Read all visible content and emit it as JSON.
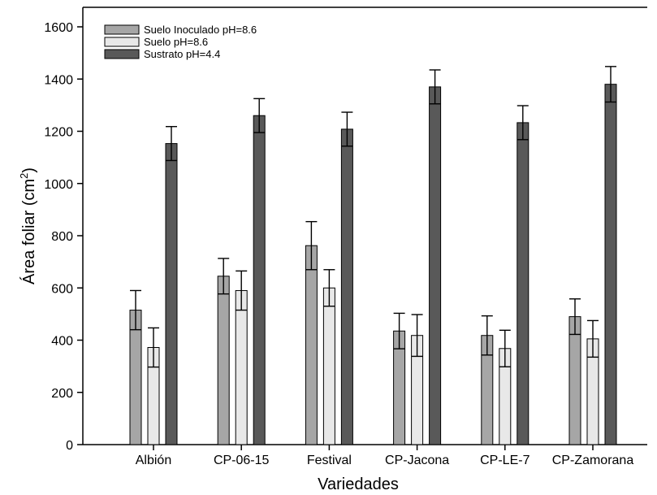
{
  "chart_data": {
    "type": "bar",
    "xlabel": "Variedades",
    "ylabel": "Área foliar (cm",
    "ylabel_superscript": "2",
    "ylabel_suffix": ")",
    "ylim": [
      0,
      1600
    ],
    "yticks": [
      0,
      200,
      400,
      600,
      800,
      1000,
      1200,
      1400,
      1600
    ],
    "categories": [
      "Albión",
      "CP-06-15",
      "Festival",
      "CP-Jacona",
      "CP-LE-7",
      "CP-Zamorana"
    ],
    "legend_position": "top-left",
    "grid": false,
    "error_bars": true,
    "series": [
      {
        "name": "Suelo Inoculado pH=8.6",
        "color": "#a6a6a6",
        "values": [
          515,
          645,
          762,
          435,
          418,
          490
        ],
        "errors": [
          75,
          68,
          92,
          68,
          75,
          68
        ]
      },
      {
        "name": "Suelo pH=8.6",
        "color": "#e8e8e8",
        "values": [
          372,
          590,
          600,
          418,
          368,
          405
        ],
        "errors": [
          75,
          75,
          70,
          80,
          70,
          70
        ]
      },
      {
        "name": "Sustrato pH=4.4",
        "color": "#595959",
        "values": [
          1153,
          1260,
          1208,
          1370,
          1233,
          1380
        ],
        "errors": [
          65,
          65,
          65,
          65,
          65,
          68
        ]
      }
    ]
  }
}
